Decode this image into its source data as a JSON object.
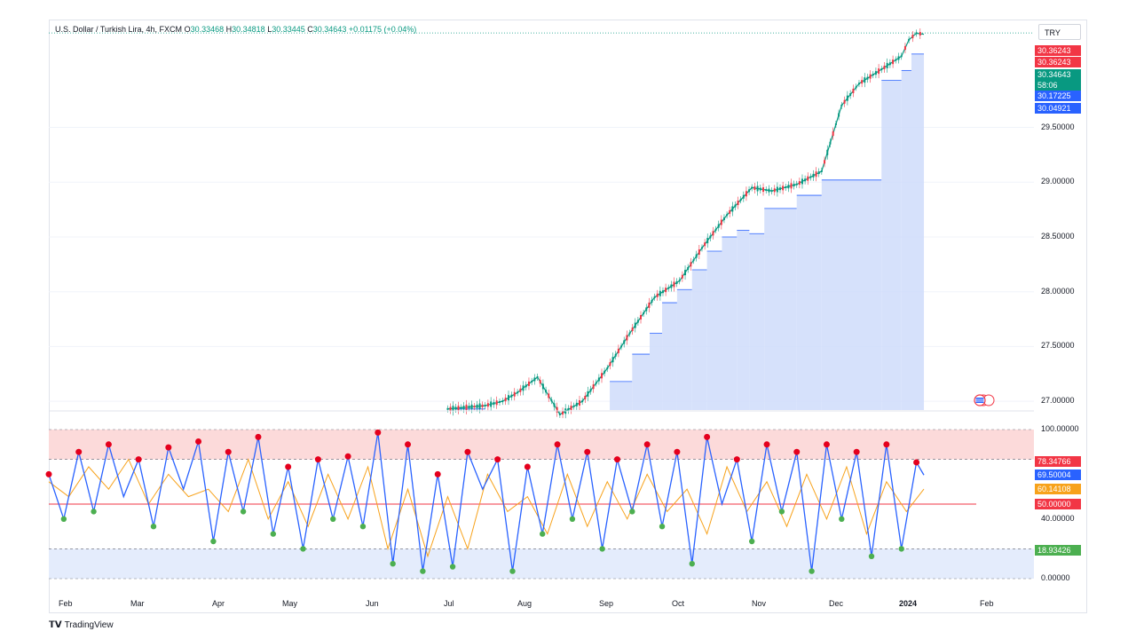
{
  "header": {
    "symbol": "U.S. Dollar / Turkish Lira, 4h, FXCM",
    "open_label": "O",
    "open": "30.33468",
    "high_label": "H",
    "high": "30.34818",
    "low_label": "L",
    "low": "30.33445",
    "close_label": "C",
    "close": "30.34643",
    "change": "+0.01175 (+0.04%)"
  },
  "currency_button": "TRY",
  "brand": "TradingView",
  "colors": {
    "up": "#089981",
    "down": "#f23645",
    "rsi_line": "#2962ff",
    "rsi_signal": "#f7a21b",
    "overbought_fill": "#fcdada",
    "oversold_fill": "#e4ecfc",
    "stair_fill": "#cfdcfa",
    "midline": "#f23645"
  },
  "price_tags": [
    {
      "value": "30.36243",
      "color": "#f23645"
    },
    {
      "value": "30.36243",
      "color": "#f23645"
    },
    {
      "value": "30.34643",
      "color": "#089981"
    },
    {
      "value": "58:06",
      "color": "#089981"
    },
    {
      "value": "30.17225",
      "color": "#2962ff"
    },
    {
      "value": "30.04921",
      "color": "#2962ff"
    }
  ],
  "rsi_tags": [
    {
      "value": "78.34766",
      "color": "#f23645"
    },
    {
      "value": "69.50004",
      "color": "#2962ff"
    },
    {
      "value": "60.14108",
      "color": "#f7a21b"
    },
    {
      "value": "50.00000",
      "color": "#f23645"
    },
    {
      "value": "18.93426",
      "color": "#4caf50"
    }
  ],
  "chart_data": [
    {
      "type": "line",
      "title": "U.S. Dollar / Turkish Lira, 4h, FXCM",
      "y_ticks": [
        "29.50000",
        "29.00000",
        "28.50000",
        "28.00000",
        "27.50000",
        "27.00000"
      ],
      "ylim": [
        26.92,
        30.42
      ],
      "x_ticks": [
        "Feb",
        "Mar",
        "Apr",
        "May",
        "Jun",
        "Jul",
        "Aug",
        "Sep",
        "Oct",
        "Nov",
        "Dec",
        "2024",
        "Feb"
      ],
      "x_range_days": [
        0,
        372
      ],
      "series": [
        {
          "x": [
            160,
            175,
            182,
            188,
            196,
            205,
            214,
            224,
            233,
            243,
            253,
            262,
            272,
            282,
            290,
            300,
            310,
            318,
            325,
            334,
            342,
            345,
            348,
            351
          ],
          "y": [
            26.93,
            26.96,
            27.0,
            27.08,
            27.22,
            26.88,
            27.0,
            27.3,
            27.62,
            27.95,
            28.1,
            28.4,
            28.7,
            28.95,
            28.92,
            28.98,
            29.1,
            29.7,
            29.9,
            30.03,
            30.15,
            30.3,
            30.36,
            30.35
          ]
        }
      ],
      "stair_levels": [
        {
          "from": 163,
          "to": 175,
          "y": 26.93
        },
        {
          "from": 225,
          "to": 234,
          "y": 27.18
        },
        {
          "from": 234,
          "to": 241,
          "y": 27.43
        },
        {
          "from": 241,
          "to": 246,
          "y": 27.62
        },
        {
          "from": 246,
          "to": 252,
          "y": 27.9
        },
        {
          "from": 252,
          "to": 258,
          "y": 28.02
        },
        {
          "from": 258,
          "to": 264,
          "y": 28.2
        },
        {
          "from": 264,
          "to": 270,
          "y": 28.37
        },
        {
          "from": 270,
          "to": 276,
          "y": 28.5
        },
        {
          "from": 276,
          "to": 281,
          "y": 28.56
        },
        {
          "from": 281,
          "to": 287,
          "y": 28.53
        },
        {
          "from": 287,
          "to": 300,
          "y": 28.76
        },
        {
          "from": 300,
          "to": 310,
          "y": 28.88
        },
        {
          "from": 310,
          "to": 334,
          "y": 29.02
        },
        {
          "from": 334,
          "to": 342,
          "y": 29.93
        },
        {
          "from": 342,
          "to": 346,
          "y": 30.02
        },
        {
          "from": 346,
          "to": 351,
          "y": 30.17
        }
      ],
      "last_price_line": 30.36243
    },
    {
      "type": "line",
      "title": "",
      "y_ticks": [
        "100.00000",
        "40.00000",
        "0.00000"
      ],
      "ylim": [
        0,
        100
      ],
      "levels": {
        "overbought": 80,
        "midline": 50,
        "oversold": 20
      },
      "series": [
        {
          "x": [
            0,
            6,
            12,
            18,
            24,
            30,
            36,
            42,
            48,
            54,
            60,
            66,
            72,
            78,
            84,
            90,
            96,
            102,
            108,
            114,
            120,
            126,
            132,
            138,
            144,
            150,
            156,
            162,
            168,
            174,
            180,
            186,
            192,
            198,
            204,
            210,
            216,
            222,
            228,
            234,
            240,
            246,
            252,
            258,
            264,
            270,
            276,
            282,
            288,
            294,
            300,
            306,
            312,
            318,
            324,
            330,
            336,
            342,
            348,
            351
          ],
          "y": [
            70,
            40,
            85,
            45,
            90,
            55,
            80,
            35,
            88,
            60,
            92,
            25,
            85,
            45,
            95,
            30,
            75,
            20,
            80,
            40,
            82,
            35,
            98,
            10,
            90,
            5,
            70,
            8,
            85,
            60,
            80,
            5,
            75,
            30,
            90,
            40,
            85,
            20,
            80,
            45,
            90,
            35,
            85,
            10,
            95,
            50,
            80,
            25,
            90,
            45,
            85,
            5,
            90,
            40,
            85,
            15,
            90,
            20,
            78,
            69.5
          ]
        },
        {
          "x": [
            0,
            8,
            16,
            24,
            32,
            40,
            48,
            56,
            64,
            72,
            80,
            88,
            96,
            104,
            112,
            120,
            128,
            136,
            144,
            152,
            160,
            168,
            176,
            184,
            192,
            200,
            208,
            216,
            224,
            232,
            240,
            248,
            256,
            264,
            272,
            280,
            288,
            296,
            304,
            312,
            320,
            328,
            336,
            344,
            351
          ],
          "y": [
            65,
            55,
            75,
            60,
            80,
            50,
            70,
            55,
            60,
            45,
            80,
            40,
            65,
            35,
            70,
            40,
            75,
            20,
            60,
            15,
            55,
            20,
            70,
            45,
            55,
            30,
            70,
            35,
            65,
            40,
            70,
            45,
            60,
            30,
            75,
            45,
            65,
            35,
            70,
            40,
            75,
            30,
            65,
            45,
            60.1
          ]
        }
      ]
    }
  ],
  "mini_legend_icon": "us-flag-icon"
}
